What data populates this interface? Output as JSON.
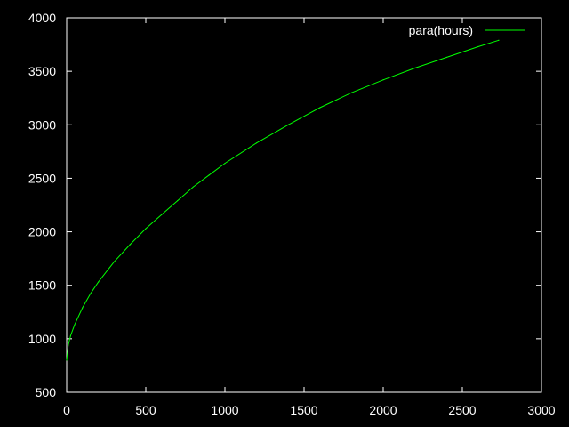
{
  "chart_data": {
    "type": "line",
    "title": "",
    "xlabel": "",
    "ylabel": "",
    "xlim": [
      0,
      3000
    ],
    "ylim": [
      500,
      4000
    ],
    "x_ticks": [
      "0",
      "500",
      "1000",
      "1500",
      "2000",
      "2500",
      "3000"
    ],
    "y_ticks": [
      "500",
      "1000",
      "1500",
      "2000",
      "2500",
      "3000",
      "3500",
      "4000"
    ],
    "grid": false,
    "legend_position": "top-right",
    "background": "#000000",
    "axis_color": "#ffffff",
    "series": [
      {
        "name": "para(hours)",
        "color": "#00ff00",
        "x": [
          0,
          10,
          25,
          50,
          100,
          150,
          200,
          300,
          400,
          500,
          600,
          700,
          800,
          900,
          1000,
          1200,
          1400,
          1600,
          1800,
          2000,
          2200,
          2400,
          2600,
          2730
        ],
        "y": [
          800,
          940,
          1030,
          1130,
          1290,
          1420,
          1530,
          1720,
          1880,
          2030,
          2160,
          2290,
          2420,
          2530,
          2640,
          2830,
          3000,
          3160,
          3300,
          3420,
          3530,
          3630,
          3730,
          3790
        ]
      }
    ]
  }
}
